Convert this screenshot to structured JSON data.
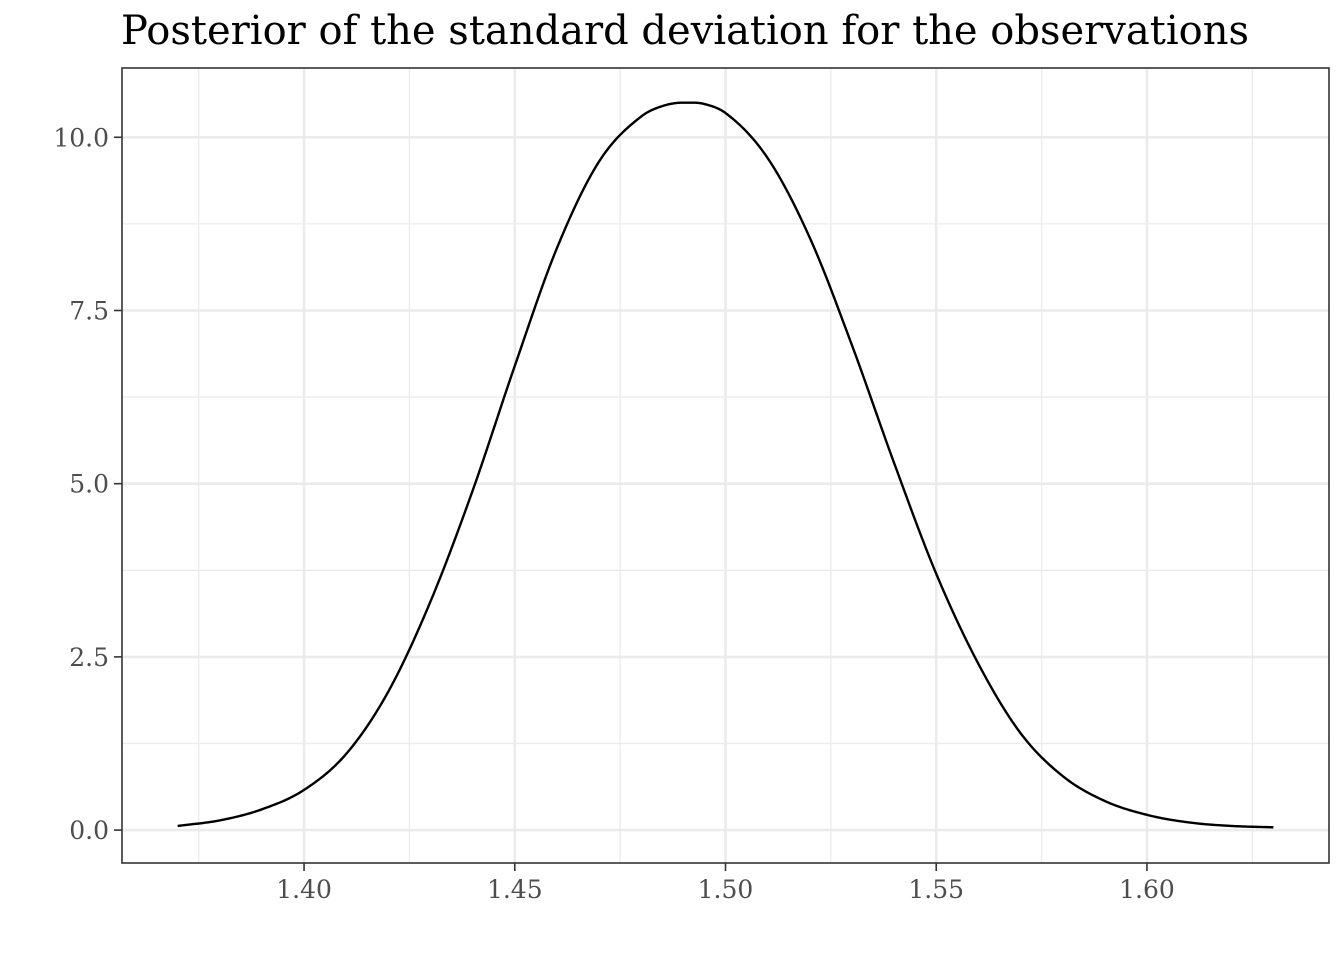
{
  "chart_data": {
    "type": "line",
    "title": "Posterior of the standard deviation for the observations",
    "xlabel": "",
    "ylabel": "",
    "xlim": [
      1.3568,
      1.6432
    ],
    "ylim": [
      -0.475,
      11.0
    ],
    "x_major_ticks": [
      1.4,
      1.45,
      1.5,
      1.55,
      1.6
    ],
    "x_minor_ticks": [
      1.375,
      1.425,
      1.475,
      1.525,
      1.575,
      1.625
    ],
    "x_tick_labels": [
      "1.40",
      "1.45",
      "1.50",
      "1.55",
      "1.60"
    ],
    "y_major_ticks": [
      0.0,
      2.5,
      5.0,
      7.5,
      10.0
    ],
    "y_minor_ticks": [
      1.25,
      3.75,
      6.25,
      8.75
    ],
    "y_tick_labels": [
      "0.0",
      "2.5",
      "5.0",
      "7.5",
      "10.0"
    ],
    "grid": true,
    "legend": "none",
    "line_color": "#000000",
    "series": [
      {
        "x": [
          1.37,
          1.38,
          1.39,
          1.4,
          1.41,
          1.42,
          1.43,
          1.44,
          1.45,
          1.46,
          1.47,
          1.48,
          1.485,
          1.49,
          1.492,
          1.495,
          1.5,
          1.51,
          1.52,
          1.53,
          1.54,
          1.55,
          1.56,
          1.57,
          1.58,
          1.59,
          1.6,
          1.61,
          1.62,
          1.63
        ],
        "values": [
          0.06,
          0.14,
          0.3,
          0.58,
          1.1,
          2.0,
          3.3,
          4.9,
          6.7,
          8.4,
          9.65,
          10.3,
          10.45,
          10.5,
          10.5,
          10.48,
          10.35,
          9.7,
          8.55,
          7.0,
          5.3,
          3.7,
          2.4,
          1.4,
          0.78,
          0.42,
          0.22,
          0.11,
          0.06,
          0.04
        ]
      }
    ]
  }
}
